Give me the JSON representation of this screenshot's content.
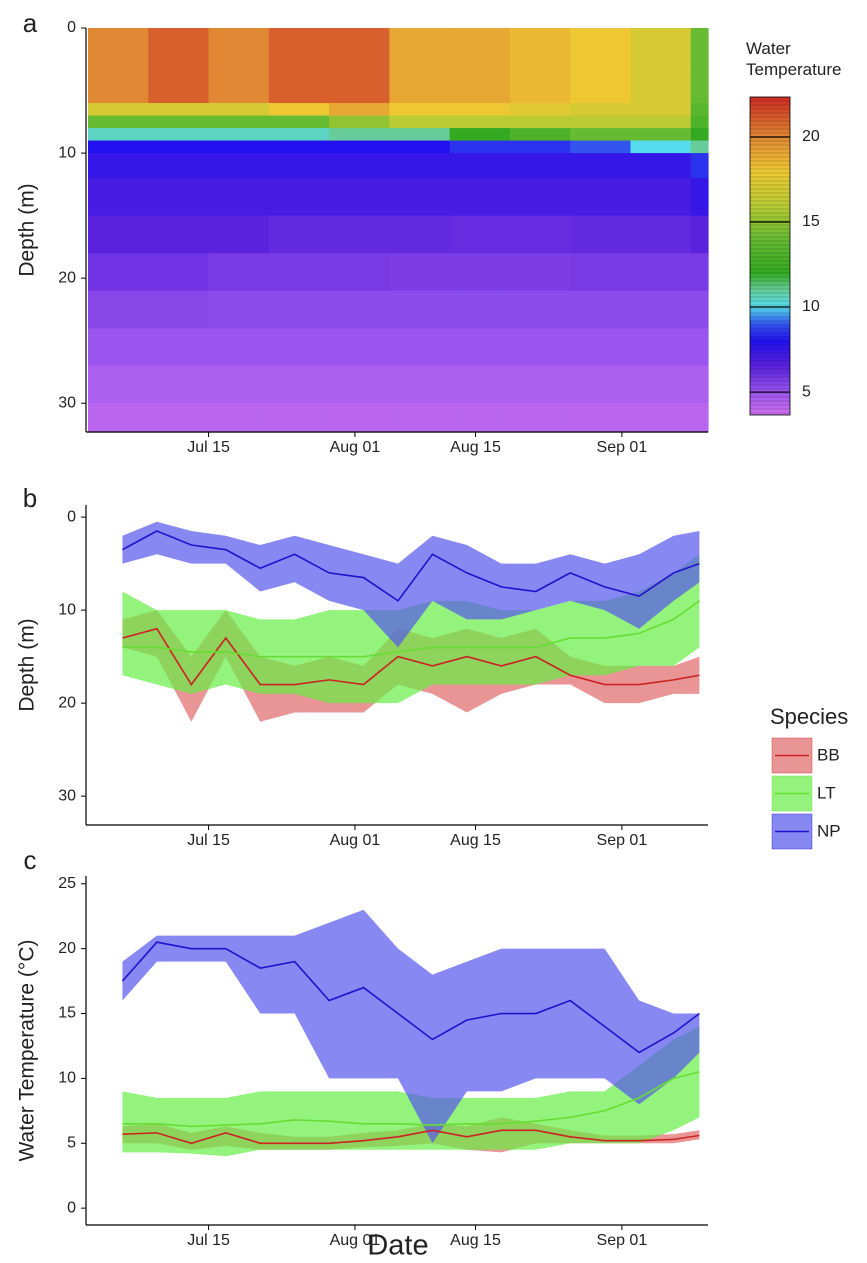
{
  "chart_data": [
    {
      "type": "heatmap",
      "label": "a",
      "ylabel": "Depth (m)",
      "x": [
        "Jul 01",
        "Jul 08",
        "Jul 15",
        "Jul 22",
        "Jul 29",
        "Aug 05",
        "Aug 12",
        "Aug 19",
        "Aug 26",
        "Sep 02",
        "Sep 09"
      ],
      "depths": [
        0,
        3,
        6,
        7,
        8,
        9,
        10,
        12,
        15,
        18,
        21,
        24,
        27,
        30
      ],
      "values": [
        [
          20,
          21,
          20,
          21,
          21,
          19,
          19,
          18.5,
          18,
          17,
          14
        ],
        [
          20,
          21,
          20,
          21,
          21,
          19,
          19,
          18.5,
          18,
          17,
          14
        ],
        [
          17,
          17,
          17,
          18,
          19,
          18,
          18,
          17.5,
          17,
          17,
          13.5
        ],
        [
          14,
          14,
          14,
          14,
          15,
          16,
          16,
          16,
          16,
          16,
          13
        ],
        [
          10.5,
          10.5,
          10.5,
          10.5,
          11,
          11,
          12,
          13,
          14,
          14,
          12
        ],
        [
          8,
          8,
          8,
          8,
          8,
          8,
          8.5,
          8.5,
          9,
          10,
          11
        ],
        [
          7.5,
          7.5,
          7.5,
          7.5,
          7.5,
          7.5,
          7.5,
          7.5,
          7.5,
          7.5,
          8.5
        ],
        [
          7,
          7,
          7,
          7,
          7,
          7,
          7,
          7,
          7,
          7,
          7.5
        ],
        [
          6.5,
          6.5,
          6.5,
          6.3,
          6.3,
          6.3,
          6.2,
          6.2,
          6.3,
          6.3,
          6.5
        ],
        [
          6,
          6,
          5.8,
          5.8,
          5.8,
          5.7,
          5.7,
          5.7,
          5.8,
          5.8,
          5.8
        ],
        [
          5.4,
          5.4,
          5.3,
          5.3,
          5.3,
          5.3,
          5.3,
          5.3,
          5.3,
          5.3,
          5.3
        ],
        [
          5,
          5,
          5,
          5,
          5,
          5,
          5,
          5,
          5,
          5,
          5
        ],
        [
          4.5,
          4.5,
          4.5,
          4.5,
          4.5,
          4.5,
          4.5,
          4.5,
          4.5,
          4.5,
          4.5
        ],
        [
          4.2,
          4.2,
          4.2,
          4.2,
          4.2,
          4.2,
          4.2,
          4.2,
          4.2,
          4.2,
          4.2
        ]
      ],
      "xlim": [
        "Jul 01",
        "Sep 11"
      ],
      "xticks": [
        "Jul 15",
        "Aug 01",
        "Aug 15",
        "Sep 01"
      ],
      "ylim": [
        0,
        32.3
      ],
      "yticks": [
        0,
        10,
        20,
        30
      ],
      "yreverse": true,
      "colorbar_title": "Water Temperature",
      "clim": [
        3.65,
        22.35
      ],
      "cticks": [
        5,
        10,
        15,
        20
      ],
      "colorscale": [
        [
          3.65,
          "#d070f0"
        ],
        [
          5,
          "#9955ee"
        ],
        [
          6.5,
          "#5a22dd"
        ],
        [
          8,
          "#2211ee"
        ],
        [
          9,
          "#3355ee"
        ],
        [
          10,
          "#55ddee"
        ],
        [
          11,
          "#66cc99"
        ],
        [
          12,
          "#33aa22"
        ],
        [
          14,
          "#66bb33"
        ],
        [
          16,
          "#bbcc33"
        ],
        [
          18,
          "#eec833"
        ],
        [
          20,
          "#e08833"
        ],
        [
          22.35,
          "#cc2a22"
        ]
      ]
    },
    {
      "type": "ribbon-line",
      "label": "b",
      "ylabel": "Depth (m)",
      "legend_title": "Species",
      "x": [
        "Jul 05",
        "Jul 09",
        "Jul 13",
        "Jul 17",
        "Jul 21",
        "Jul 25",
        "Jul 29",
        "Aug 02",
        "Aug 06",
        "Aug 10",
        "Aug 14",
        "Aug 18",
        "Aug 22",
        "Aug 26",
        "Aug 30",
        "Sep 03",
        "Sep 07",
        "Sep 10"
      ],
      "xlim": [
        "Jul 01",
        "Sep 11"
      ],
      "xticks": [
        "Jul 15",
        "Aug 01",
        "Aug 15",
        "Sep 01"
      ],
      "ylim": [
        -1.3,
        33.1
      ],
      "yticks": [
        0,
        10,
        20,
        30
      ],
      "yreverse": true,
      "series": [
        {
          "name": "BB",
          "color": "#cc2222",
          "fill": "#e06868",
          "values": [
            13,
            12,
            18,
            13,
            18,
            18,
            17.5,
            18,
            15,
            16,
            15,
            16,
            15,
            17,
            18,
            18,
            17.5,
            17
          ],
          "lower": [
            11,
            10,
            15,
            10,
            15,
            16,
            15,
            16,
            12,
            13,
            12,
            13,
            12,
            15,
            16,
            16,
            16,
            15
          ],
          "upper": [
            14,
            15,
            22,
            15,
            22,
            21,
            21,
            21,
            18,
            19,
            21,
            19,
            18,
            18,
            20,
            20,
            19,
            19
          ]
        },
        {
          "name": "LT",
          "color": "#66dd33",
          "fill": "#66ee44",
          "values": [
            14,
            14,
            14.5,
            14.5,
            15,
            15,
            15,
            15,
            14.5,
            14,
            14,
            14,
            14,
            13,
            13,
            12.5,
            11,
            9
          ],
          "lower": [
            8,
            10,
            10,
            10,
            11,
            11,
            10,
            10,
            10,
            9,
            9,
            10,
            10,
            9,
            9,
            8,
            6,
            4
          ],
          "upper": [
            17,
            18,
            19,
            18,
            19,
            19,
            20,
            20,
            20,
            18,
            18,
            18,
            18,
            17,
            17,
            16,
            16,
            14
          ]
        },
        {
          "name": "NP",
          "color": "#2211cc",
          "fill": "#5555ee",
          "values": [
            3.5,
            1.5,
            3,
            3.5,
            5.5,
            4,
            6,
            6.5,
            9,
            4,
            6,
            7.5,
            8,
            6,
            7.5,
            8.5,
            6,
            5
          ],
          "lower": [
            2,
            0.5,
            1.5,
            2,
            3,
            2,
            3,
            4,
            5,
            2,
            3,
            5,
            5,
            4,
            5,
            4,
            2,
            1.5
          ],
          "upper": [
            5,
            4,
            5,
            5,
            8,
            7,
            9,
            10,
            14,
            9,
            11,
            11,
            10,
            9,
            10,
            12,
            9,
            7
          ]
        }
      ]
    },
    {
      "type": "ribbon-line",
      "label": "c",
      "ylabel": "Water Temperature (°C)",
      "xlabel": "Date",
      "x": [
        "Jul 05",
        "Jul 09",
        "Jul 13",
        "Jul 17",
        "Jul 21",
        "Jul 25",
        "Jul 29",
        "Aug 02",
        "Aug 06",
        "Aug 10",
        "Aug 14",
        "Aug 18",
        "Aug 22",
        "Aug 26",
        "Aug 30",
        "Sep 03",
        "Sep 07",
        "Sep 10"
      ],
      "xlim": [
        "Jul 01",
        "Sep 11"
      ],
      "xticks": [
        "Jul 15",
        "Aug 01",
        "Aug 15",
        "Sep 01"
      ],
      "ylim": [
        -1.3,
        25.6
      ],
      "yticks": [
        0,
        5,
        10,
        15,
        20,
        25
      ],
      "yreverse": false,
      "series": [
        {
          "color": "#cc2222",
          "fill": "#e06868",
          "values": [
            5.7,
            5.8,
            5,
            5.8,
            5,
            5,
            5,
            5.2,
            5.5,
            6,
            5.5,
            6,
            6,
            5.5,
            5.2,
            5.2,
            5.3,
            5.6
          ],
          "lower": [
            5,
            5,
            4.5,
            4.8,
            4.5,
            4.5,
            4.5,
            4.7,
            4.8,
            5,
            4.5,
            4.3,
            5,
            5,
            5,
            5,
            5,
            5.3
          ],
          "upper": [
            6.3,
            6.5,
            5.8,
            6.3,
            5.8,
            5.5,
            5.5,
            5.8,
            6,
            6.5,
            6.3,
            7,
            6.5,
            6,
            5.6,
            5.6,
            5.7,
            6
          ]
        },
        {
          "color": "#66dd33",
          "fill": "#66ee44",
          "values": [
            6.5,
            6.5,
            6.3,
            6.4,
            6.5,
            6.8,
            6.7,
            6.5,
            6.5,
            6.4,
            6.5,
            6.5,
            6.7,
            7,
            7.5,
            8.5,
            10,
            10.5
          ],
          "lower": [
            4.3,
            4.3,
            4.2,
            4,
            4.5,
            4.5,
            4.5,
            4.5,
            4.5,
            4.5,
            4.5,
            4.5,
            4.5,
            5,
            5,
            5,
            6,
            7
          ],
          "upper": [
            9,
            8.5,
            8.5,
            8.5,
            9,
            9,
            9,
            9,
            9,
            8.5,
            8.5,
            8.5,
            8.5,
            9,
            9,
            11,
            13,
            14
          ]
        },
        {
          "color": "#2211cc",
          "fill": "#5555ee",
          "values": [
            17.5,
            20.5,
            20,
            20,
            18.5,
            19,
            16,
            17,
            15,
            13,
            14.5,
            15,
            15,
            16,
            14,
            12,
            13.5,
            15
          ],
          "lower": [
            16,
            19,
            19,
            19,
            15,
            15,
            10,
            10,
            10,
            5,
            9,
            9,
            10,
            10,
            10,
            8,
            10,
            12
          ],
          "upper": [
            19,
            21,
            21,
            21,
            21,
            21,
            22,
            23,
            20,
            18,
            19,
            20,
            20,
            20,
            20,
            16,
            15,
            15
          ]
        }
      ]
    }
  ]
}
